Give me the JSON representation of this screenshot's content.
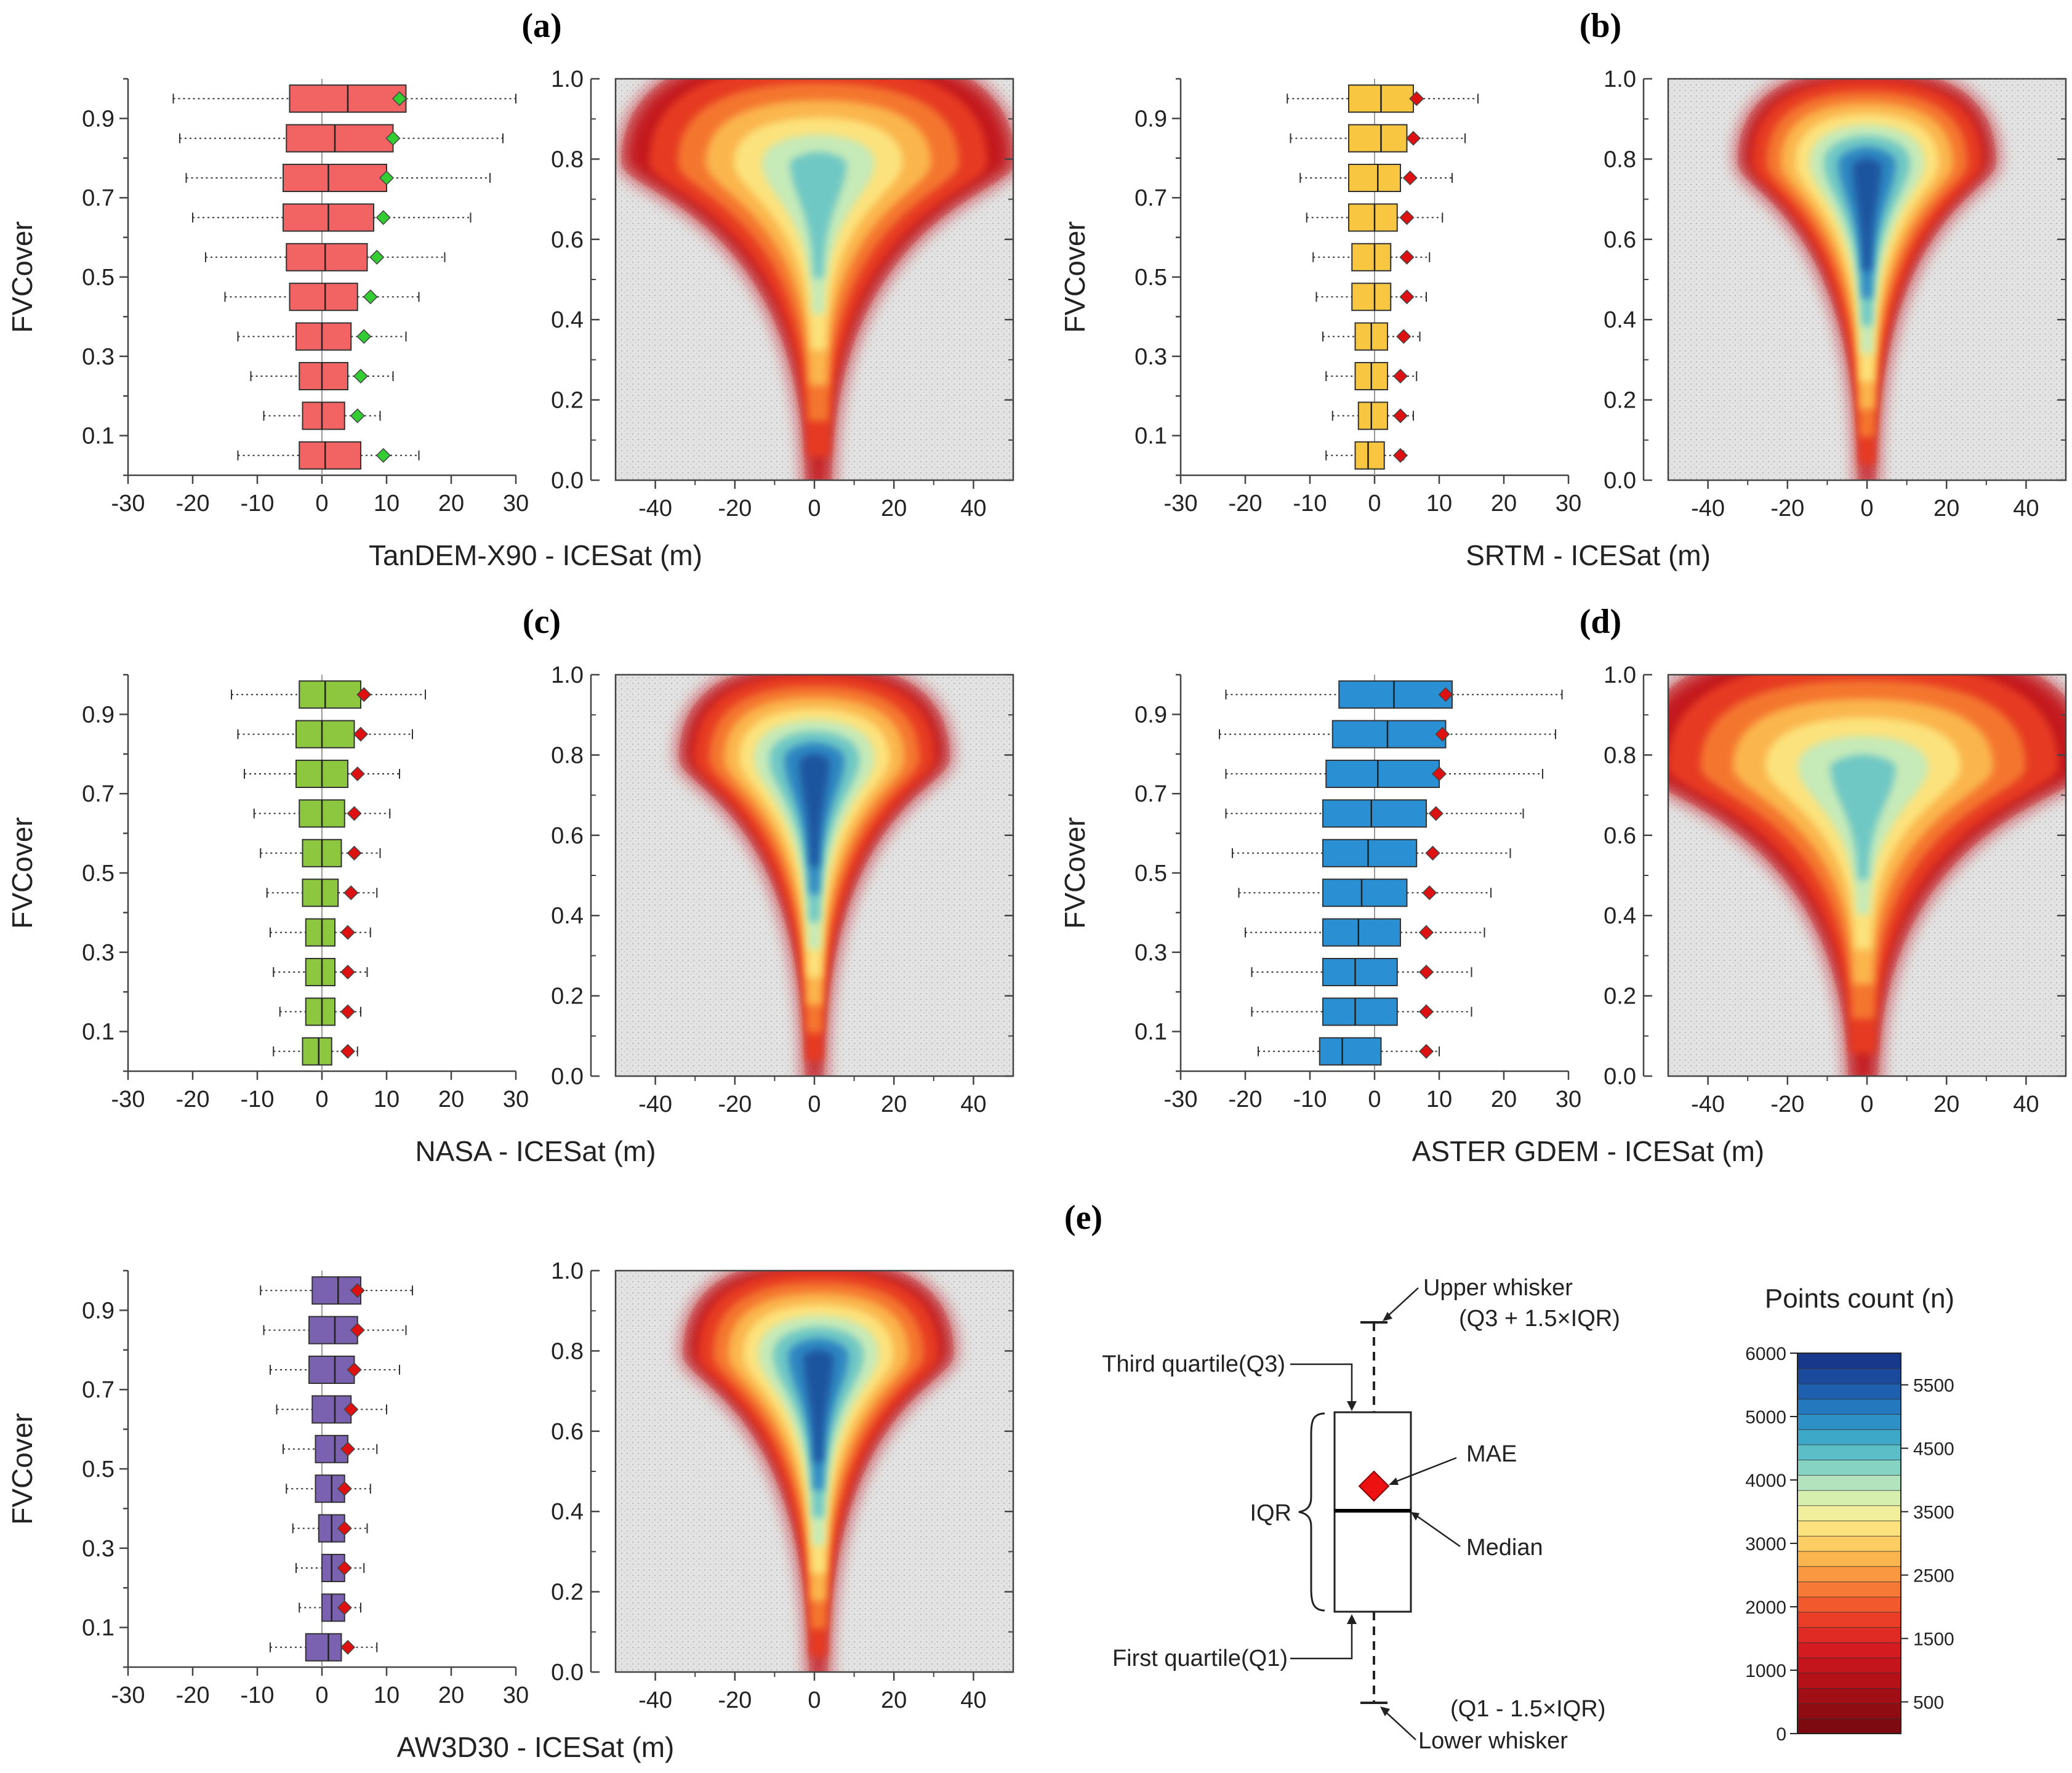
{
  "figure": {
    "panels": [
      "(a)",
      "(b)",
      "(c)",
      "(d)",
      "(e)"
    ]
  },
  "chart_data": [
    {
      "type": "boxplot",
      "panel": "(a)",
      "xlabel": "TanDEM-X90 - ICESat (m)",
      "ylabel": "FVCover",
      "xlim": [
        -30,
        30
      ],
      "xticks": [
        "-30",
        "-20",
        "-10",
        "0",
        "10",
        "20",
        "30"
      ],
      "yticks": [
        "0.1",
        "0.3",
        "0.5",
        "0.7",
        "0.9"
      ],
      "fill": "#f26464",
      "mae_color": "#33cc33",
      "categories": [
        0.05,
        0.15,
        0.25,
        0.35,
        0.45,
        0.55,
        0.65,
        0.75,
        0.85,
        0.95
      ],
      "wlow": [
        -13,
        -9,
        -11,
        -13,
        -15,
        -18,
        -20,
        -21,
        -22,
        -23
      ],
      "q1": [
        -3.5,
        -3,
        -3.5,
        -4,
        -5,
        -5.5,
        -6,
        -6,
        -5.5,
        -5
      ],
      "median": [
        0.5,
        0,
        0,
        0,
        0.5,
        0.5,
        1,
        1,
        2,
        4
      ],
      "q3": [
        6,
        3.5,
        4,
        4.5,
        5.5,
        7,
        8,
        10,
        11,
        13
      ],
      "whigh": [
        15,
        9,
        11,
        13,
        15,
        19,
        23,
        26,
        28,
        30
      ],
      "mae": [
        9.5,
        5.5,
        6,
        6.5,
        7.5,
        8.5,
        9.5,
        10,
        11,
        12
      ]
    },
    {
      "type": "heatmap",
      "panel": "(a)",
      "xlim": [
        -50,
        50
      ],
      "ylim": [
        0,
        1
      ],
      "xticks": [
        "-40",
        "-20",
        "0",
        "20",
        "40"
      ],
      "yticks": [
        "0.0",
        "0.2",
        "0.4",
        "0.6",
        "0.8",
        "1.0"
      ],
      "core_center": [
        1,
        0.76
      ],
      "core_intensity": 4200,
      "spread": 1.25
    },
    {
      "type": "boxplot",
      "panel": "(b)",
      "xlabel": "SRTM - ICESat (m)",
      "ylabel": "FVCover",
      "xlim": [
        -30,
        30
      ],
      "xticks": [
        "-30",
        "-20",
        "-10",
        "0",
        "10",
        "20",
        "30"
      ],
      "yticks": [
        "0.1",
        "0.3",
        "0.5",
        "0.7",
        "0.9"
      ],
      "fill": "#f8c640",
      "mae_color": "#dd1111",
      "categories": [
        0.05,
        0.15,
        0.25,
        0.35,
        0.45,
        0.55,
        0.65,
        0.75,
        0.85,
        0.95
      ],
      "wlow": [
        -7.5,
        -6.5,
        -7.5,
        -8,
        -9,
        -9.5,
        -10.5,
        -11.5,
        -13,
        -13.5
      ],
      "q1": [
        -3,
        -2.5,
        -3,
        -3,
        -3.5,
        -3.5,
        -4,
        -4,
        -4,
        -4
      ],
      "median": [
        -1,
        -0.5,
        -0.5,
        -0.5,
        0,
        0,
        0,
        0.5,
        1,
        1
      ],
      "q3": [
        1.5,
        2,
        2,
        2,
        2.5,
        2.5,
        3.5,
        4,
        5,
        6
      ],
      "whigh": [
        4.5,
        6,
        6.5,
        7,
        8,
        8.5,
        10.5,
        12,
        14,
        16
      ],
      "mae": [
        4,
        4,
        4,
        4.5,
        5,
        5,
        5,
        5.5,
        6,
        6.5
      ]
    },
    {
      "type": "heatmap",
      "panel": "(b)",
      "xlim": [
        -50,
        50
      ],
      "ylim": [
        0,
        1
      ],
      "xticks": [
        "-40",
        "-20",
        "0",
        "20",
        "40"
      ],
      "yticks": [
        "0.0",
        "0.2",
        "0.4",
        "0.6",
        "0.8",
        "1.0"
      ],
      "core_center": [
        0,
        0.76
      ],
      "core_intensity": 5600,
      "spread": 0.7
    },
    {
      "type": "boxplot",
      "panel": "(c)",
      "xlabel": "NASA - ICESat (m)",
      "ylabel": "FVCover",
      "xlim": [
        -30,
        30
      ],
      "xticks": [
        "-30",
        "-20",
        "-10",
        "0",
        "10",
        "20",
        "30"
      ],
      "yticks": [
        "0.1",
        "0.3",
        "0.5",
        "0.7",
        "0.9"
      ],
      "fill": "#8dc63f",
      "mae_color": "#dd1111",
      "categories": [
        0.05,
        0.15,
        0.25,
        0.35,
        0.45,
        0.55,
        0.65,
        0.75,
        0.85,
        0.95
      ],
      "wlow": [
        -7.5,
        -6.5,
        -7.5,
        -8,
        -8.5,
        -9.5,
        -10.5,
        -12,
        -13,
        -14
      ],
      "q1": [
        -3,
        -2.5,
        -2.5,
        -2.5,
        -3,
        -3,
        -3.5,
        -4,
        -4,
        -3.5
      ],
      "median": [
        -0.5,
        0,
        0,
        0,
        0,
        0,
        0,
        0,
        0,
        0.5
      ],
      "q3": [
        1.5,
        2,
        2,
        2,
        2.5,
        3,
        3.5,
        4,
        5,
        6
      ],
      "whigh": [
        5.5,
        6,
        7,
        7.5,
        8.5,
        9,
        10.5,
        12,
        14,
        16
      ],
      "mae": [
        4,
        4,
        4,
        4,
        4.5,
        5,
        5,
        5.5,
        6,
        6.5
      ]
    },
    {
      "type": "heatmap",
      "panel": "(c)",
      "xlim": [
        -50,
        50
      ],
      "ylim": [
        0,
        1
      ],
      "xticks": [
        "-40",
        "-20",
        "0",
        "20",
        "40"
      ],
      "yticks": [
        "0.0",
        "0.2",
        "0.4",
        "0.6",
        "0.8",
        "1.0"
      ],
      "core_center": [
        0,
        0.76
      ],
      "core_intensity": 5400,
      "spread": 0.75
    },
    {
      "type": "boxplot",
      "panel": "(d)",
      "xlabel": "ASTER GDEM - ICESat (m)",
      "ylabel": "FVCover",
      "xlim": [
        -30,
        30
      ],
      "xticks": [
        "-30",
        "-20",
        "-10",
        "0",
        "10",
        "20",
        "30"
      ],
      "yticks": [
        "0.1",
        "0.3",
        "0.5",
        "0.7",
        "0.9"
      ],
      "fill": "#2b8fd4",
      "mae_color": "#dd1111",
      "categories": [
        0.05,
        0.15,
        0.25,
        0.35,
        0.45,
        0.55,
        0.65,
        0.75,
        0.85,
        0.95
      ],
      "wlow": [
        -18,
        -19,
        -19,
        -20,
        -21,
        -22,
        -23,
        -23,
        -24,
        -23
      ],
      "q1": [
        -8.5,
        -8,
        -8,
        -8,
        -8,
        -8,
        -8,
        -7.5,
        -6.5,
        -5.5
      ],
      "median": [
        -5,
        -3,
        -3,
        -2.5,
        -2,
        -1,
        -0.5,
        0.5,
        2,
        3
      ],
      "q3": [
        1,
        3.5,
        3.5,
        4,
        5,
        6.5,
        8,
        10,
        11,
        12
      ],
      "whigh": [
        10,
        15,
        15,
        17,
        18,
        21,
        23,
        26,
        28,
        29
      ],
      "mae": [
        8,
        8,
        8,
        8,
        8.5,
        9,
        9.5,
        10,
        10.5,
        11
      ]
    },
    {
      "type": "heatmap",
      "panel": "(d)",
      "xlim": [
        -50,
        50
      ],
      "ylim": [
        0,
        1
      ],
      "xticks": [
        "-40",
        "-20",
        "0",
        "20",
        "40"
      ],
      "yticks": [
        "0.0",
        "0.2",
        "0.4",
        "0.6",
        "0.8",
        "1.0"
      ],
      "core_center": [
        -1,
        0.74
      ],
      "core_intensity": 4300,
      "spread": 1.5
    },
    {
      "type": "boxplot",
      "panel": "(e-left)",
      "xlabel": "AW3D30 - ICESat (m)",
      "ylabel": "FVCover",
      "xlim": [
        -30,
        30
      ],
      "xticks": [
        "-30",
        "-20",
        "-10",
        "0",
        "10",
        "20",
        "30"
      ],
      "yticks": [
        "0.1",
        "0.3",
        "0.5",
        "0.7",
        "0.9"
      ],
      "fill": "#7b62b0",
      "mae_color": "#dd1111",
      "categories": [
        0.05,
        0.15,
        0.25,
        0.35,
        0.45,
        0.55,
        0.65,
        0.75,
        0.85,
        0.95
      ],
      "wlow": [
        -8,
        -3.5,
        -4,
        -4.5,
        -5.5,
        -6,
        -7,
        -8,
        -9,
        -9.5
      ],
      "q1": [
        -2.5,
        0,
        0,
        -0.5,
        -1,
        -1,
        -1.5,
        -2,
        -2,
        -1.5
      ],
      "median": [
        1,
        1.5,
        1.5,
        1.5,
        1.5,
        2,
        2,
        2,
        2,
        2.5
      ],
      "q3": [
        3,
        3.5,
        3.5,
        3.5,
        3.5,
        4,
        4.5,
        5,
        5.5,
        6
      ],
      "whigh": [
        8.5,
        6,
        6.5,
        7,
        7.5,
        8.5,
        10,
        12,
        13,
        14
      ],
      "mae": [
        4,
        3.5,
        3.5,
        3.5,
        3.5,
        4,
        4.5,
        5,
        5.5,
        5.5
      ]
    },
    {
      "type": "heatmap",
      "panel": "(e-left)",
      "xlim": [
        -50,
        50
      ],
      "ylim": [
        0,
        1
      ],
      "xticks": [
        "-40",
        "-20",
        "0",
        "20",
        "40"
      ],
      "yticks": [
        "0.0",
        "0.2",
        "0.4",
        "0.6",
        "0.8",
        "1.0"
      ],
      "core_center": [
        1,
        0.76
      ],
      "core_intensity": 5600,
      "spread": 0.75
    }
  ],
  "legend": {
    "upper_whisker": "Upper whisker",
    "upper_formula": "(Q3 + 1.5×IQR)",
    "third_quartile": "Third quartile(Q3)",
    "mae": "MAE",
    "iqr": "IQR",
    "median": "Median",
    "first_quartile": "First quartile(Q1)",
    "lower_formula": "(Q1 - 1.5×IQR)",
    "lower_whisker": "Lower whisker"
  },
  "colorbar": {
    "title": "Points count (n)",
    "left_ticks": [
      "6000",
      "5000",
      "4000",
      "3000",
      "2000",
      "1000",
      "0"
    ],
    "right_ticks": [
      "5500",
      "4500",
      "3500",
      "2500",
      "1500",
      "500"
    ],
    "range": [
      0,
      6000
    ],
    "colors": [
      "#7d0a10",
      "#8f0c12",
      "#a20e15",
      "#b51118",
      "#c4141c",
      "#d31b20",
      "#e02a24",
      "#ea3e28",
      "#f25a2d",
      "#f67a35",
      "#f99840",
      "#fbb54e",
      "#fccd62",
      "#fce27c",
      "#f1ee9c",
      "#d6efaf",
      "#b2e3bc",
      "#86d2c3",
      "#5cbfc7",
      "#3ea8c9",
      "#2d90c7",
      "#2478bd",
      "#1f60ae",
      "#1b4a9c",
      "#17388b"
    ]
  }
}
